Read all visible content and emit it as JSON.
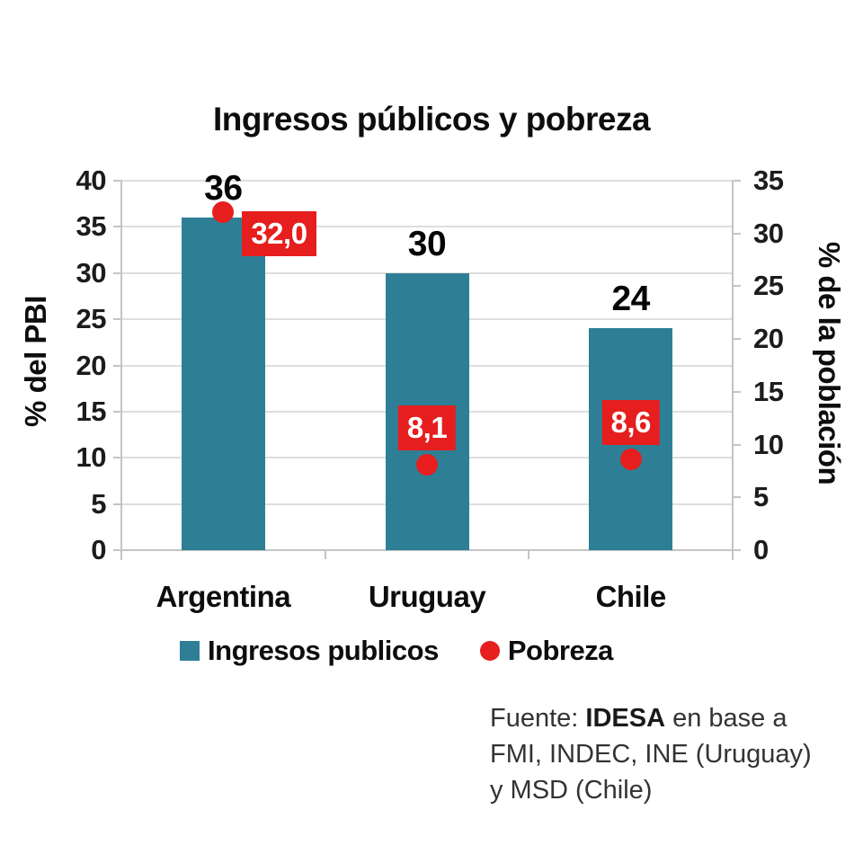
{
  "title": "Ingresos públicos y pobreza",
  "chart_data": {
    "type": "bar",
    "title": "Ingresos públicos y pobreza",
    "categories": [
      "Argentina",
      "Uruguay",
      "Chile"
    ],
    "series": [
      {
        "name": "Ingresos publicos",
        "type": "bar",
        "axis": "left",
        "values": [
          36,
          30,
          24
        ],
        "value_labels": [
          "36",
          "30",
          "24"
        ],
        "color": "#2E7F96"
      },
      {
        "name": "Pobreza",
        "type": "scatter",
        "axis": "right",
        "values": [
          32.0,
          8.1,
          8.6
        ],
        "value_labels": [
          "32,0",
          "8,1",
          "8,6"
        ],
        "label_placement": [
          "right",
          "above",
          "above"
        ],
        "color": "#E61E1E"
      }
    ],
    "axes": {
      "left": {
        "title": "% del PBI",
        "min": 0,
        "max": 40,
        "step": 5,
        "tick_labels": [
          "0",
          "5",
          "10",
          "15",
          "20",
          "25",
          "30",
          "35",
          "40"
        ]
      },
      "right": {
        "title": "% de la población",
        "min": 0,
        "max": 35,
        "step": 5,
        "tick_labels": [
          "0",
          "5",
          "10",
          "15",
          "20",
          "25",
          "30",
          "35"
        ]
      }
    },
    "grid": true,
    "legend_position": "bottom"
  },
  "legend": {
    "items": [
      {
        "label": "Ingresos publicos",
        "marker": "square",
        "color": "#2E7F96"
      },
      {
        "label": "Pobreza",
        "marker": "circle",
        "color": "#E61E1E"
      }
    ]
  },
  "source": {
    "label": "Fuente:",
    "org": "IDESA",
    "line1_rest": "en base a",
    "line2": "FMI, INDEC, INE (Uruguay)",
    "line3": "y MSD (Chile)"
  },
  "colors": {
    "bar": "#2E7F96",
    "point": "#E61E1E",
    "grid": "#DEDEDE",
    "axis": "#C4C4C4",
    "tick_text": "#1C1C1C",
    "badge_text": "#FFFFFF"
  }
}
